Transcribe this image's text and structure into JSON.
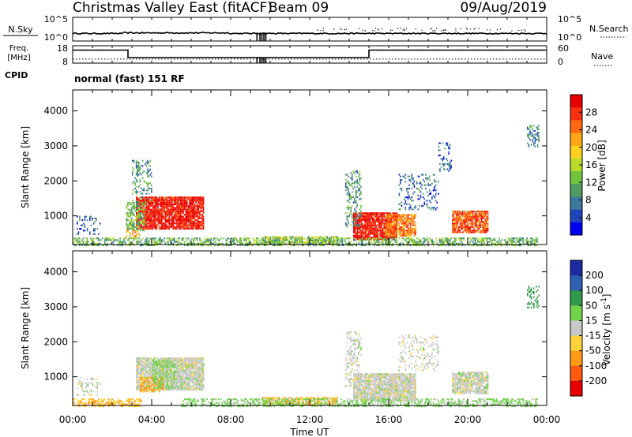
{
  "header": {
    "title": "Christmas Valley East (fitACF)",
    "beam": "Beam 09",
    "date": "09/Aug/2019"
  },
  "top_panels": {
    "nsky_label": "N.Sky",
    "nsky_ticks": [
      "10^5",
      "10^0"
    ],
    "nsearch_label": "N.Search",
    "nsearch_ticks": [
      "10^5",
      "10^0"
    ],
    "freq_label": "Freq.",
    "freq_unit": "[MHz]",
    "freq_ticks": [
      "18",
      "8"
    ],
    "nave_label": "Nave",
    "nave_ticks": [
      "60",
      "0"
    ],
    "cpid_label": "CPID",
    "cpid_text": "normal (fast) 151 RF"
  },
  "chart_data": [
    {
      "type": "line",
      "name": "noise_panel",
      "x_range_hours": [
        0,
        24
      ],
      "log_range": [
        0,
        5
      ],
      "nsky_level": 1.6,
      "data_gaps_hours": [
        9.3,
        9.45,
        9.55,
        9.65,
        9.75
      ]
    },
    {
      "type": "line",
      "name": "frequency_nave_panel",
      "freq_range_mhz": [
        8,
        18
      ],
      "nave_range": [
        0,
        60
      ],
      "frequency_mhz": {
        "x": [
          0,
          2.8,
          2.8,
          15.0,
          15.0,
          24
        ],
        "y": [
          15.5,
          15.5,
          11.2,
          11.2,
          15.5,
          15.5
        ]
      },
      "nave_level": 14
    },
    {
      "type": "heatmap",
      "name": "power",
      "xlabel": "",
      "ylabel": "Slant Range [km]",
      "x_range_hours": [
        0,
        24
      ],
      "y_range_km": [
        180,
        4600
      ],
      "yticks": [
        1000,
        2000,
        3000,
        4000
      ],
      "colorbar_label": "Power [dB]",
      "colorbar_ticks": [
        "28",
        "24",
        "20",
        "16",
        "12",
        "8",
        "4"
      ],
      "colors": [
        "#0000ee",
        "#2244bb",
        "#3b7a9a",
        "#4f9a62",
        "#6fc43c",
        "#b8dc28",
        "#ffd21e",
        "#ffa516",
        "#ff6a10",
        "#f83010",
        "#e80000"
      ],
      "value_range_db": [
        0,
        32
      ],
      "echo_regions": [
        {
          "t0": 3.2,
          "t1": 6.6,
          "r0": 650,
          "r1": 1550,
          "v": 30,
          "density": 0.9
        },
        {
          "t0": 2.7,
          "t1": 3.6,
          "r0": 600,
          "r1": 1400,
          "v": 12,
          "density": 0.6
        },
        {
          "t0": 3.0,
          "t1": 4.0,
          "r0": 1400,
          "r1": 2600,
          "v": 9,
          "density": 0.3
        },
        {
          "t0": 2.7,
          "t1": 3.4,
          "r0": 400,
          "r1": 600,
          "v": 20,
          "density": 0.5
        },
        {
          "t0": 0.2,
          "t1": 1.4,
          "r0": 500,
          "r1": 1000,
          "v": 6,
          "density": 0.3
        },
        {
          "t0": 14.2,
          "t1": 16.4,
          "r0": 350,
          "r1": 1100,
          "v": 30,
          "density": 0.9
        },
        {
          "t0": 15.8,
          "t1": 17.4,
          "r0": 450,
          "r1": 1050,
          "v": 24,
          "density": 0.85
        },
        {
          "t0": 13.8,
          "t1": 14.6,
          "r0": 700,
          "r1": 2300,
          "v": 10,
          "density": 0.35
        },
        {
          "t0": 16.5,
          "t1": 18.5,
          "r0": 1200,
          "r1": 2200,
          "v": 7,
          "density": 0.25
        },
        {
          "t0": 19.2,
          "t1": 21.0,
          "r0": 550,
          "r1": 1150,
          "v": 26,
          "density": 0.85
        },
        {
          "t0": 9.6,
          "t1": 13.4,
          "r0": 180,
          "r1": 420,
          "v": 14,
          "density": 0.7
        },
        {
          "t0": 0.0,
          "t1": 23.5,
          "r0": 180,
          "r1": 380,
          "v": 12,
          "density": 0.55
        },
        {
          "t0": 23.0,
          "t1": 23.6,
          "r0": 3000,
          "r1": 3600,
          "v": 8,
          "density": 0.4
        },
        {
          "t0": 18.5,
          "t1": 19.2,
          "r0": 2300,
          "r1": 3100,
          "v": 6,
          "density": 0.25
        }
      ]
    },
    {
      "type": "heatmap",
      "name": "velocity",
      "xlabel": "Time UT",
      "ylabel": "Slant Range [km]",
      "x_range_hours": [
        0,
        24
      ],
      "xticks": [
        "00:00",
        "04:00",
        "08:00",
        "12:00",
        "16:00",
        "20:00",
        "00:00"
      ],
      "y_range_km": [
        180,
        4600
      ],
      "yticks": [
        1000,
        2000,
        3000,
        4000
      ],
      "colorbar_label": "Velocity [m s^-1]",
      "colorbar_ticks": [
        "200",
        "100",
        "50",
        "15",
        "-15",
        "-50",
        "-100",
        "-200"
      ],
      "colors": [
        "#e80000",
        "#ff5a10",
        "#ff9a14",
        "#ffd23a",
        "#c8c8c8",
        "#6fd24a",
        "#2f9a4a",
        "#2f5fb0",
        "#1b2aa0"
      ],
      "value_range_ms": [
        -250,
        250
      ],
      "echo_regions": [
        {
          "t0": 3.2,
          "t1": 6.6,
          "r0": 650,
          "r1": 1550,
          "v": 0,
          "density": 0.9
        },
        {
          "t0": 3.4,
          "t1": 4.6,
          "r0": 600,
          "r1": 1000,
          "v": -60,
          "density": 0.6
        },
        {
          "t0": 4.0,
          "t1": 5.2,
          "r0": 700,
          "r1": 1500,
          "v": 30,
          "density": 0.5
        },
        {
          "t0": 0.2,
          "t1": 1.4,
          "r0": 500,
          "r1": 1000,
          "v": 0,
          "density": 0.3
        },
        {
          "t0": 14.2,
          "t1": 17.4,
          "r0": 350,
          "r1": 1100,
          "v": 0,
          "density": 0.9
        },
        {
          "t0": 19.2,
          "t1": 21.0,
          "r0": 550,
          "r1": 1150,
          "v": 0,
          "density": 0.85
        },
        {
          "t0": 9.6,
          "t1": 13.4,
          "r0": 180,
          "r1": 420,
          "v": -50,
          "density": 0.7
        },
        {
          "t0": 0.0,
          "t1": 3.5,
          "r0": 180,
          "r1": 380,
          "v": -45,
          "density": 0.6
        },
        {
          "t0": 5.5,
          "t1": 23.5,
          "r0": 180,
          "r1": 380,
          "v": 25,
          "density": 0.5
        },
        {
          "t0": 13.8,
          "t1": 14.6,
          "r0": 700,
          "r1": 2300,
          "v": 0,
          "density": 0.35
        },
        {
          "t0": 16.5,
          "t1": 18.5,
          "r0": 1200,
          "r1": 2200,
          "v": 0,
          "density": 0.25
        },
        {
          "t0": 23.0,
          "t1": 23.6,
          "r0": 3000,
          "r1": 3600,
          "v": 80,
          "density": 0.4
        }
      ]
    }
  ]
}
